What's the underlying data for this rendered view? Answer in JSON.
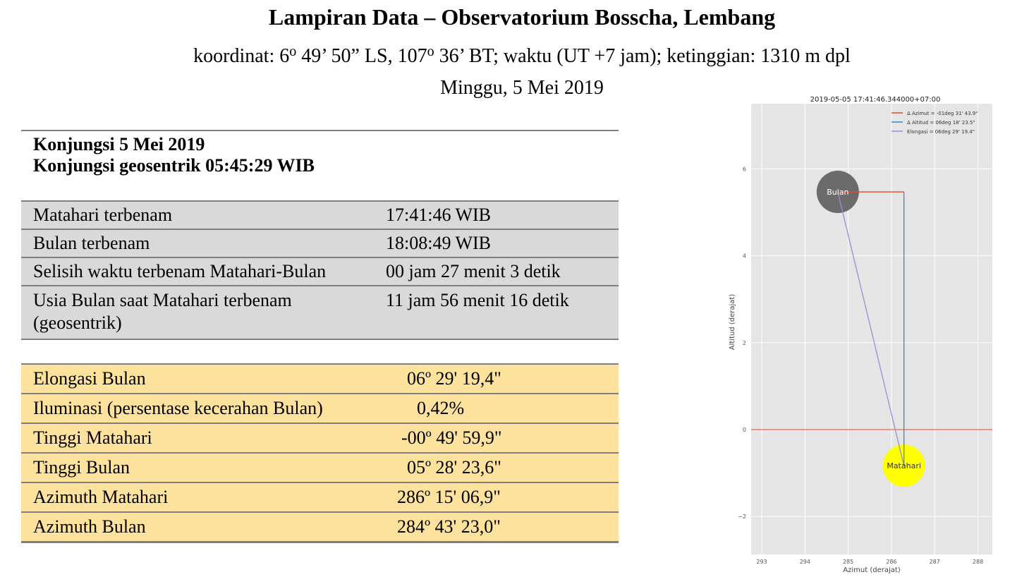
{
  "header": {
    "title": "Lampiran Data – Observatorium Bosscha, Lembang",
    "sub_pre": "koordinat: 6",
    "sup1": "o",
    "sub_mid1": " 49’ 50” LS, 107",
    "sup2": "o",
    "sub_mid2": " 36’ BT; waktu (UT +7 jam); ketinggian: 1310 m dpl",
    "date": "Minggu, 5 Mei 2019"
  },
  "konjungsi": {
    "line1": "Konjungsi 5 Mei 2019",
    "line2": "Konjungsi geosentrik  05:45:29 WIB"
  },
  "table1": [
    {
      "label": "Matahari terbenam",
      "value": "17:41:46 WIB"
    },
    {
      "label": "Bulan terbenam",
      "value": "18:08:49 WIB"
    },
    {
      "label": "Selisih waktu terbenam Matahari-Bulan",
      "value": "00 jam 27 menit 3 detik"
    },
    {
      "label": "Usia Bulan saat Matahari terbenam",
      "label2": "(geosentrik)",
      "value": "11 jam 56 menit 16 detik"
    }
  ],
  "table2": [
    {
      "label": "Elongasi Bulan",
      "value": "06º 29' 19,4\""
    },
    {
      "label": "Iluminasi (persentase kecerahan Bulan)",
      "value": "0,42%"
    },
    {
      "label": "Tinggi Matahari",
      "value": "-00º 49' 59,9\""
    },
    {
      "label": "Tinggi Bulan",
      "value": "05º 28' 23,6\""
    },
    {
      "label": "Azimuth Matahari",
      "value": "286º 15' 06,9\""
    },
    {
      "label": "Azimuth Bulan",
      "value": "284º 43' 23,0\""
    }
  ],
  "chart_data": {
    "type": "scatter",
    "title": "2019-05-05 17:41:46.344000+07:00",
    "xlabel": "Azimut (derajat)",
    "ylabel": "Altitud (derajat)",
    "xlim": [
      292.8,
      288.3
    ],
    "ylim": [
      -2.9,
      7.5
    ],
    "x_ticks": [
      293,
      294,
      285,
      286,
      287,
      288
    ],
    "y_ticks": [
      6,
      4,
      2,
      0,
      -2
    ],
    "y_tick_labels": [
      "6",
      "4",
      "2",
      "0",
      "−2"
    ],
    "grid": true,
    "legend_position": "top-right",
    "bodies": [
      {
        "name": "Bulan",
        "azimuth": 284.72,
        "altitude": 5.47,
        "color": "#6b6b6b",
        "text_color": "#ffffff"
      },
      {
        "name": "Matahari",
        "azimuth": 286.25,
        "altitude": -0.83,
        "color": "#ffff00",
        "text_color": "#333333"
      }
    ],
    "series": [
      {
        "name": "Δ Azimut = -01deg 31' 43.9\"",
        "color": "#e24a33"
      },
      {
        "name": "Δ Altitud = 06deg 18' 23.5\"",
        "color": "#348abd"
      },
      {
        "name": "Elongasi = 06deg 29' 19.4\"",
        "color": "#988ed5"
      }
    ],
    "horizon_altitude": 0,
    "horizon_color": "#e24a33"
  }
}
